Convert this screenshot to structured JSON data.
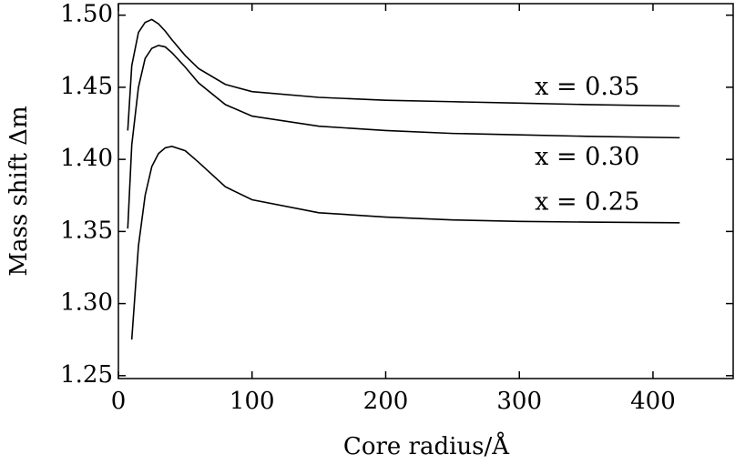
{
  "chart_data": {
    "type": "line",
    "x_label": "Core radius/Å",
    "y_label": "Mass shift Δm",
    "x": [
      7,
      10,
      15,
      20,
      25,
      30,
      35,
      40,
      50,
      60,
      80,
      100,
      150,
      200,
      250,
      300,
      350,
      420
    ],
    "series": [
      {
        "name": "x = 0.35",
        "color": "#000000",
        "values": [
          1.42,
          1.465,
          1.488,
          1.495,
          1.497,
          1.494,
          1.489,
          1.483,
          1.472,
          1.463,
          1.452,
          1.447,
          1.443,
          1.441,
          1.44,
          1.439,
          1.438,
          1.437
        ]
      },
      {
        "name": "x = 0.30",
        "color": "#000000",
        "values": [
          1.352,
          1.41,
          1.45,
          1.47,
          1.477,
          1.479,
          1.478,
          1.474,
          1.464,
          1.453,
          1.438,
          1.43,
          1.423,
          1.42,
          1.418,
          1.417,
          1.416,
          1.415
        ]
      },
      {
        "name": "x = 0.25",
        "color": "#000000",
        "values": [
          null,
          1.275,
          1.34,
          1.375,
          1.395,
          1.404,
          1.408,
          1.409,
          1.406,
          1.398,
          1.381,
          1.372,
          1.363,
          1.36,
          1.358,
          1.357,
          1.3565,
          1.356
        ]
      }
    ],
    "xlim": [
      0,
      460
    ],
    "ylim": [
      1.248,
      1.508
    ],
    "xticks": [
      0,
      100,
      200,
      300,
      400
    ],
    "yticks": [
      1.25,
      {
        "value": 1.3,
        "label": "1.30"
      },
      1.35,
      {
        "value": 1.4,
        "label": "1.40"
      },
      1.45,
      {
        "value": 1.5,
        "label": "1.50"
      }
    ],
    "grid": false
  }
}
